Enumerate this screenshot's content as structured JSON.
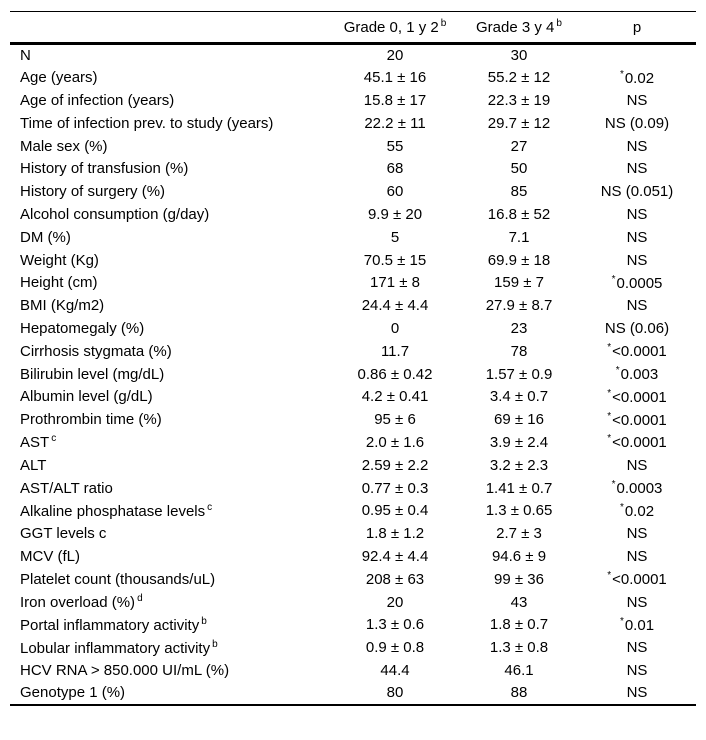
{
  "table": {
    "header": {
      "col1": {
        "label": ""
      },
      "col2": {
        "label": "Grade 0, 1 y 2",
        "sup": "b"
      },
      "col3": {
        "label": "Grade 3 y 4",
        "sup": "b"
      },
      "col4": {
        "label": "p"
      }
    },
    "rows": [
      {
        "label": "N",
        "sup": "",
        "v1": "20",
        "v2": "30",
        "p": "",
        "star": false
      },
      {
        "label": "Age (years)",
        "sup": "",
        "v1": "45.1 ± 16",
        "v2": "55.2 ± 12",
        "p": "0.02",
        "star": true
      },
      {
        "label": "Age of infection (years)",
        "sup": "",
        "v1": "15.8 ± 17",
        "v2": "22.3 ± 19",
        "p": "NS",
        "star": false
      },
      {
        "label": "Time of infection prev. to study (years)",
        "sup": "",
        "v1": "22.2 ± 11",
        "v2": "29.7 ± 12",
        "p": "NS (0.09)",
        "star": false
      },
      {
        "label": "Male sex (%)",
        "sup": "",
        "v1": "55",
        "v2": "27",
        "p": "NS",
        "star": false
      },
      {
        "label": "History of transfusion (%)",
        "sup": "",
        "v1": "68",
        "v2": "50",
        "p": "NS",
        "star": false
      },
      {
        "label": "History of surgery (%)",
        "sup": "",
        "v1": "60",
        "v2": "85",
        "p": "NS (0.051)",
        "star": false
      },
      {
        "label": "Alcohol consumption (g/day)",
        "sup": "",
        "v1": "9.9 ± 20",
        "v2": "16.8 ± 52",
        "p": "NS",
        "star": false
      },
      {
        "label": "DM (%)",
        "sup": "",
        "v1": "5",
        "v2": "7.1",
        "p": "NS",
        "star": false
      },
      {
        "label": "Weight (Kg)",
        "sup": "",
        "v1": "70.5 ± 15",
        "v2": "69.9 ± 18",
        "p": "NS",
        "star": false
      },
      {
        "label": "Height (cm)",
        "sup": "",
        "v1": "171 ± 8",
        "v2": "159 ± 7",
        "p": "0.0005",
        "star": true
      },
      {
        "label": "BMI (Kg/m2)",
        "sup": "",
        "v1": "24.4 ± 4.4",
        "v2": "27.9 ± 8.7",
        "p": "NS",
        "star": false
      },
      {
        "label": "Hepatomegaly (%)",
        "sup": "",
        "v1": "0",
        "v2": "23",
        "p": "NS (0.06)",
        "star": false
      },
      {
        "label": "Cirrhosis stygmata (%)",
        "sup": "",
        "v1": "11.7",
        "v2": "78",
        "p": "<0.0001",
        "star": true
      },
      {
        "label": "Bilirubin level (mg/dL)",
        "sup": "",
        "v1": "0.86 ± 0.42",
        "v2": "1.57 ± 0.9",
        "p": "0.003",
        "star": true
      },
      {
        "label": "Albumin level (g/dL)",
        "sup": "",
        "v1": "4.2 ± 0.41",
        "v2": "3.4 ± 0.7",
        "p": "<0.0001",
        "star": true
      },
      {
        "label": "Prothrombin time (%)",
        "sup": "",
        "v1": "95 ± 6",
        "v2": "69 ± 16",
        "p": "<0.0001",
        "star": true
      },
      {
        "label": "AST",
        "sup": "c",
        "v1": "2.0 ± 1.6",
        "v2": "3.9 ± 2.4",
        "p": "<0.0001",
        "star": true
      },
      {
        "label": "ALT",
        "sup": "",
        "v1": "2.59 ± 2.2",
        "v2": "3.2 ± 2.3",
        "p": "NS",
        "star": false
      },
      {
        "label": "AST/ALT ratio",
        "sup": "",
        "v1": "0.77 ± 0.3",
        "v2": "1.41 ± 0.7",
        "p": "0.0003",
        "star": true
      },
      {
        "label": "Alkaline phosphatase levels",
        "sup": "c",
        "v1": "0.95 ± 0.4",
        "v2": "1.3 ± 0.65",
        "p": "0.02",
        "star": true
      },
      {
        "label": "GGT levels c",
        "sup": "",
        "v1": "1.8 ± 1.2",
        "v2": "2.7 ± 3",
        "p": "NS",
        "star": false
      },
      {
        "label": "MCV (fL)",
        "sup": "",
        "v1": "92.4 ± 4.4",
        "v2": "94.6 ± 9",
        "p": "NS",
        "star": false
      },
      {
        "label": "Platelet count (thousands/uL)",
        "sup": "",
        "v1": "208 ± 63",
        "v2": "99 ± 36",
        "p": "<0.0001",
        "star": true
      },
      {
        "label": "Iron overload (%)",
        "sup": "d",
        "v1": "20",
        "v2": "43",
        "p": "NS",
        "star": false
      },
      {
        "label": "Portal inflammatory activity",
        "sup": "b",
        "v1": "1.3 ± 0.6",
        "v2": "1.8 ± 0.7",
        "p": "0.01",
        "star": true
      },
      {
        "label": "Lobular inflammatory activity",
        "sup": "b",
        "v1": "0.9 ± 0.8",
        "v2": "1.3 ± 0.8",
        "p": "NS",
        "star": false
      },
      {
        "label": "HCV RNA > 850.000 UI/mL (%)",
        "sup": "",
        "v1": "44.4",
        "v2": "46.1",
        "p": "NS",
        "star": false
      },
      {
        "label": "Genotype 1 (%)",
        "sup": "",
        "v1": "80",
        "v2": "88",
        "p": "NS",
        "star": false
      }
    ],
    "colors": {
      "background": "#ffffff",
      "text": "#000000",
      "rule": "#000000"
    }
  }
}
